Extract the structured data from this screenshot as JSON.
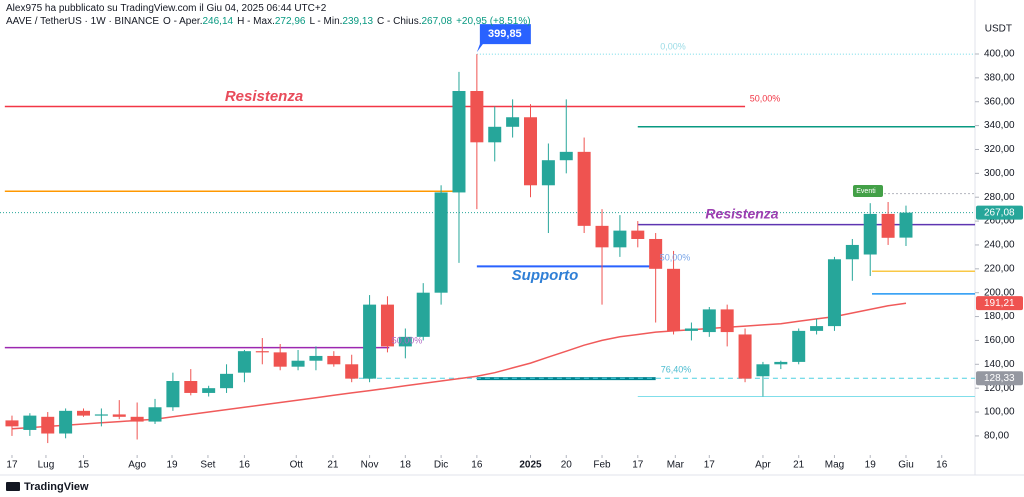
{
  "header": {
    "author_line": "Alex975 ha pubblicato su TradingView.com il Giu 04, 2025 06:44 UTC+2",
    "symbol": "AAVE / TetherUS · 1W · BINANCE",
    "ohlc": [
      {
        "label": "O - Aper.",
        "value": "246,14"
      },
      {
        "label": "H - Max.",
        "value": "272,96"
      },
      {
        "label": "L - Min.",
        "value": "239,13"
      },
      {
        "label": "C - Chius.",
        "value": "267,08"
      }
    ],
    "change": "+20,95 (+8,51%)"
  },
  "footer": {
    "brand": "TradingView"
  },
  "chart_data": {
    "type": "candlestick",
    "y_unit": "USDT",
    "x": [
      0,
      1,
      2,
      3,
      4,
      5,
      6,
      7,
      8,
      9,
      10,
      11,
      12,
      13,
      14,
      15,
      16,
      17,
      18,
      19,
      20,
      21,
      22,
      23,
      24,
      25,
      26,
      27,
      28,
      29,
      30,
      31,
      32,
      33,
      34,
      35,
      36,
      37,
      38,
      39,
      40,
      41,
      42,
      43,
      44,
      45,
      46,
      47,
      48,
      49,
      50
    ],
    "open": [
      93,
      85,
      96,
      82,
      101,
      97,
      98,
      96,
      92,
      104,
      126,
      116,
      120,
      133,
      151,
      150,
      138,
      143,
      147,
      140,
      128,
      190,
      155,
      163,
      200,
      284,
      369,
      326,
      339,
      347,
      290,
      311,
      318,
      256,
      238,
      252,
      245,
      220,
      168,
      167,
      186,
      165,
      130,
      140,
      142,
      168,
      172,
      228,
      232,
      266,
      246.14
    ],
    "high": [
      97,
      99,
      100,
      103,
      103,
      103,
      110,
      108,
      111,
      133,
      136,
      122,
      140,
      152,
      162,
      157,
      152,
      155,
      151,
      148,
      198,
      197,
      170,
      208,
      290,
      385,
      399.85,
      356,
      362,
      358,
      325,
      362,
      330,
      270,
      265,
      260,
      250,
      235,
      175,
      188,
      190,
      170,
      142,
      143,
      170,
      178,
      230,
      245,
      275,
      276,
      272.96
    ],
    "low": [
      80,
      80,
      74,
      78,
      96,
      88,
      94,
      77,
      90,
      101,
      114,
      113,
      116,
      125,
      140,
      135,
      135,
      135,
      138,
      125,
      125,
      150,
      145,
      160,
      190,
      225,
      270,
      310,
      330,
      280,
      250,
      300,
      250,
      190,
      230,
      238,
      175,
      165,
      160,
      163,
      155,
      125,
      113,
      136,
      140,
      165,
      168,
      210,
      214,
      240,
      239.13
    ],
    "close": [
      88,
      97,
      82,
      101,
      97,
      98,
      96,
      92,
      104,
      126,
      116,
      120,
      132,
      151,
      150,
      138,
      143,
      147,
      140,
      128,
      190,
      155,
      163,
      200,
      284,
      369,
      326,
      339,
      347,
      290,
      311,
      318,
      256,
      238,
      252,
      245,
      220,
      168,
      170,
      186,
      167,
      128,
      140,
      142,
      168,
      172,
      228,
      240,
      266,
      246,
      267.08
    ],
    "up_color": "#26a69a",
    "down_color": "#ef5350",
    "moving_average": {
      "color": "#f05a5a",
      "values": [
        86,
        87,
        88,
        89,
        90,
        91,
        92,
        93,
        94,
        96,
        98,
        100,
        102,
        104,
        106,
        108,
        110,
        112,
        114,
        116,
        118,
        120,
        122,
        124,
        126,
        128,
        130,
        133,
        137,
        141,
        146,
        151,
        156,
        160,
        163,
        165,
        167,
        168,
        169,
        170,
        171,
        172,
        173,
        174,
        176,
        178,
        180,
        183,
        186,
        189,
        191.21
      ]
    },
    "levels": [
      {
        "value": 356,
        "color": "#f23645"
      },
      {
        "value": 285,
        "color": "#ff9800"
      },
      {
        "value": 399.85,
        "color": "#80deea"
      },
      {
        "value": 339,
        "color": "#089981"
      },
      {
        "value": 257,
        "color": "#5e35b1"
      },
      {
        "value": 222,
        "color": "#2962ff"
      },
      {
        "value": 154,
        "color": "#9c27b0"
      },
      {
        "value": 128,
        "color": "#00838f"
      },
      {
        "value": 128.33,
        "color": "#4dd0e1"
      },
      {
        "value": 113,
        "color": "#80deea"
      },
      {
        "value": 218,
        "color": "#f9c846"
      },
      {
        "value": 199,
        "color": "#2196f3"
      },
      {
        "value": 283,
        "color": "#b2b5be"
      },
      {
        "value": 267.08,
        "color": "#26a69a"
      }
    ],
    "annotations": [
      {
        "text": "Resistenza",
        "color": "#e84b5a"
      },
      {
        "text": "Resistenza",
        "color": "#9c3fb0"
      },
      {
        "text": "Supporto",
        "color": "#2f7fd6"
      },
      {
        "text": "0,00%",
        "color": "#9adbe6"
      },
      {
        "text": "50,00%",
        "color": "#f23645"
      },
      {
        "text": "50,00%",
        "color": "#7aa6e8"
      },
      {
        "text": "50,00%",
        "color": "#b169c4"
      },
      {
        "text": "76,40%",
        "color": "#4dbcd0"
      },
      {
        "text": "Eventi",
        "color": "#ffffff"
      }
    ],
    "high_label": {
      "value": 399.85,
      "label": "399,85",
      "color": "#2962ff"
    },
    "price_labels": [
      {
        "value": 267.08,
        "label": "267,08",
        "color": "#26a69a"
      },
      {
        "value": 191.21,
        "label": "191,21",
        "color": "#ef5350"
      },
      {
        "value": 128.33,
        "label": "128,33",
        "color": "#9598a1"
      }
    ],
    "xlim": [
      -0.67,
      53.86
    ],
    "ylim": [
      64,
      431
    ],
    "yticks": [
      {
        "value": 80,
        "label": "80,00"
      },
      {
        "value": 100,
        "label": "100,00"
      },
      {
        "value": 120,
        "label": "120,00"
      },
      {
        "value": 140,
        "label": "140,00"
      },
      {
        "value": 160,
        "label": "160,00"
      },
      {
        "value": 180,
        "label": "180,00"
      },
      {
        "value": 200,
        "label": "200,00"
      },
      {
        "value": 220,
        "label": "220,00"
      },
      {
        "value": 240,
        "label": "240,00"
      },
      {
        "value": 260,
        "label": "260,00"
      },
      {
        "value": 280,
        "label": "280,00"
      },
      {
        "value": 300,
        "label": "300,00"
      },
      {
        "value": 320,
        "label": "320,00"
      },
      {
        "value": 340,
        "label": "340,00"
      },
      {
        "value": 360,
        "label": "360,00"
      },
      {
        "value": 380,
        "label": "380,00"
      },
      {
        "value": 400,
        "label": "400,00"
      }
    ],
    "xticks": [
      {
        "value": 0,
        "label": "17"
      },
      {
        "value": 1.9,
        "label": "Lug"
      },
      {
        "value": 4,
        "label": "15"
      },
      {
        "value": 7,
        "label": "Ago"
      },
      {
        "value": 8.95,
        "label": "19"
      },
      {
        "value": 10.96,
        "label": "Set"
      },
      {
        "value": 13,
        "label": "16"
      },
      {
        "value": 15.9,
        "label": "Ott"
      },
      {
        "value": 17.95,
        "label": "21"
      },
      {
        "value": 20,
        "label": "Nov"
      },
      {
        "value": 22,
        "label": "18"
      },
      {
        "value": 24,
        "label": "Dic"
      },
      {
        "value": 26,
        "label": "16"
      },
      {
        "value": 29,
        "label": "2025"
      },
      {
        "value": 31,
        "label": "20"
      },
      {
        "value": 33,
        "label": "Feb"
      },
      {
        "value": 35,
        "label": "17"
      },
      {
        "value": 37.1,
        "label": "Mar"
      },
      {
        "value": 39,
        "label": "17"
      },
      {
        "value": 42,
        "label": "Apr"
      },
      {
        "value": 44,
        "label": "21"
      },
      {
        "value": 46,
        "label": "Mag"
      },
      {
        "value": 48,
        "label": "19"
      },
      {
        "value": 50,
        "label": "Giu"
      },
      {
        "value": 52,
        "label": "16"
      }
    ]
  }
}
